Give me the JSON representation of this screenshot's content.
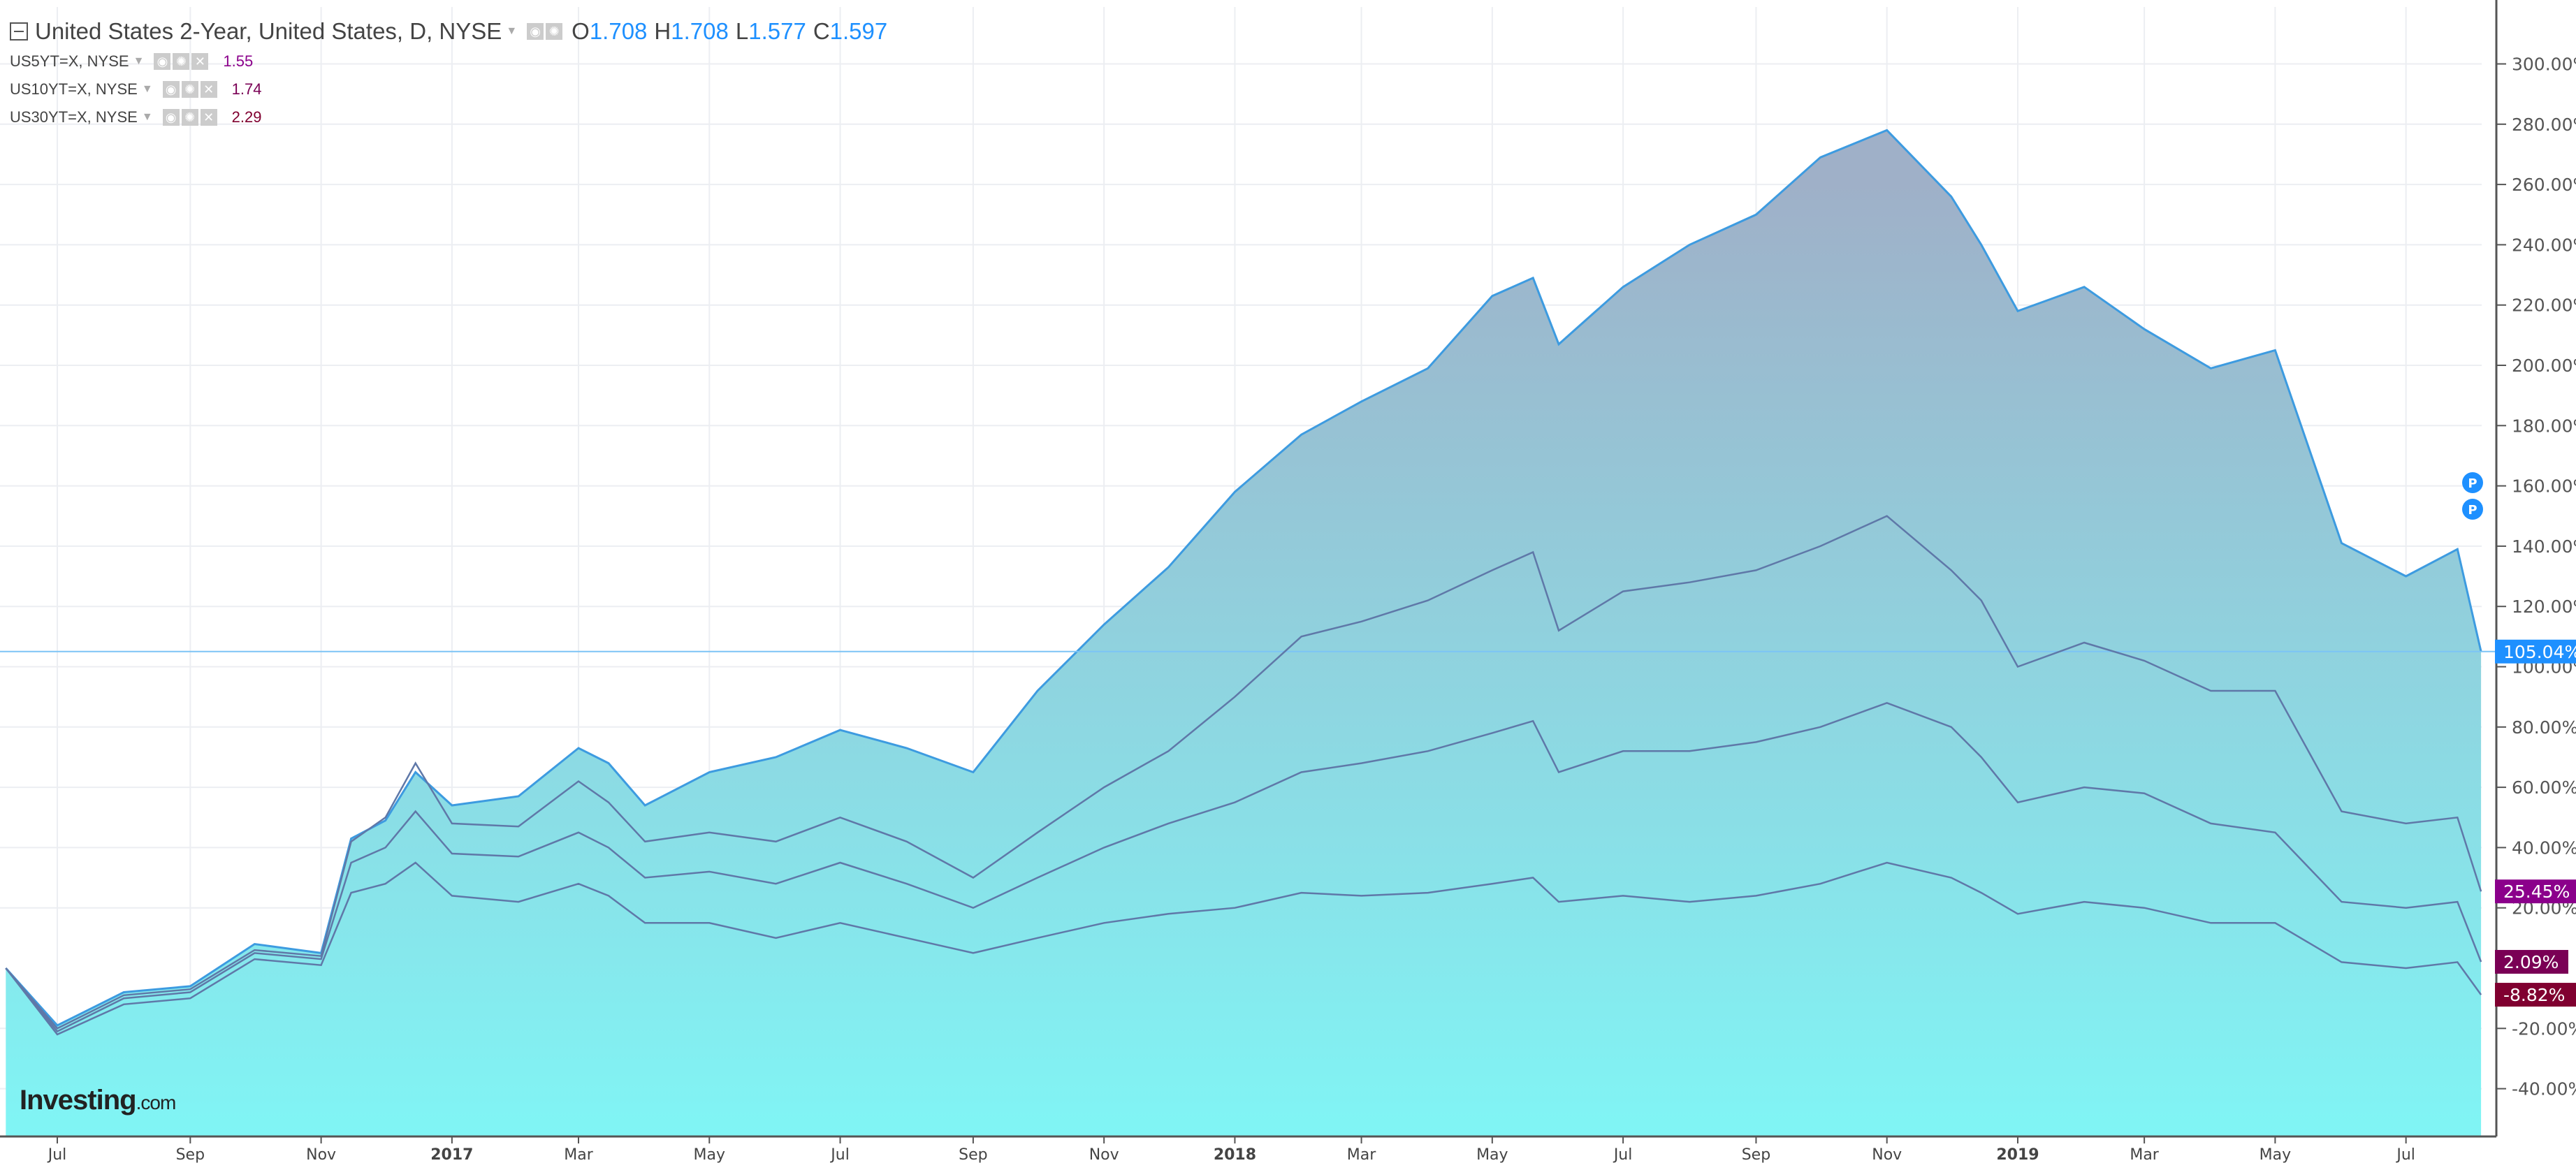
{
  "legend": {
    "main": {
      "title": "United States 2-Year, United States, D, NYSE",
      "o_label": "O",
      "o": "1.708",
      "h_label": "H",
      "h": "1.708",
      "l_label": "L",
      "l": "1.577",
      "c_label": "C",
      "c": "1.597"
    },
    "subs": [
      {
        "name": "US5YT=X, NYSE",
        "value": "1.55",
        "color": "#8b008b"
      },
      {
        "name": "US10YT=X, NYSE",
        "value": "1.74",
        "color": "#7a0055"
      },
      {
        "name": "US30YT=X, NYSE",
        "value": "2.29",
        "color": "#800030"
      }
    ],
    "icons": [
      "eye-icon",
      "gear-icon",
      "close-icon"
    ]
  },
  "logo": {
    "text": "Investing",
    "suffix": ".com"
  },
  "chart_data": {
    "type": "area",
    "y_scale": "percent change",
    "ylim": [
      -50,
      315
    ],
    "y_ticks": [
      "300.00%",
      "280.00%",
      "260.00%",
      "240.00%",
      "220.00%",
      "200.00%",
      "180.00%",
      "160.00%",
      "140.00%",
      "120.00%",
      "100.00%",
      "80.00%",
      "60.00%",
      "40.00%",
      "20.00%",
      "-20.00%",
      "-40.00%"
    ],
    "y_tick_values": [
      300,
      280,
      260,
      240,
      220,
      200,
      180,
      160,
      140,
      120,
      100,
      80,
      60,
      40,
      20,
      -20,
      -40
    ],
    "x_ticks": [
      {
        "label": "Jul",
        "date": "2016-07-01"
      },
      {
        "label": "Sep",
        "date": "2016-09-01"
      },
      {
        "label": "Nov",
        "date": "2016-11-01"
      },
      {
        "label": "2017",
        "date": "2017-01-01",
        "bold": true
      },
      {
        "label": "Mar",
        "date": "2017-03-01"
      },
      {
        "label": "May",
        "date": "2017-05-01"
      },
      {
        "label": "Jul",
        "date": "2017-07-01"
      },
      {
        "label": "Sep",
        "date": "2017-09-01"
      },
      {
        "label": "Nov",
        "date": "2017-11-01"
      },
      {
        "label": "2018",
        "date": "2018-01-01",
        "bold": true
      },
      {
        "label": "Mar",
        "date": "2018-03-01"
      },
      {
        "label": "May",
        "date": "2018-05-01"
      },
      {
        "label": "Jul",
        "date": "2018-07-01"
      },
      {
        "label": "Sep",
        "date": "2018-09-01"
      },
      {
        "label": "Nov",
        "date": "2018-11-01"
      },
      {
        "label": "2019",
        "date": "2019-01-01",
        "bold": true
      },
      {
        "label": "Mar",
        "date": "2019-03-01"
      },
      {
        "label": "May",
        "date": "2019-05-01"
      },
      {
        "label": "Jul",
        "date": "2019-07-01"
      }
    ],
    "grid": true,
    "x": [
      "2016-06-07",
      "2016-07-01",
      "2016-08-01",
      "2016-09-01",
      "2016-10-01",
      "2016-11-01",
      "2016-11-15",
      "2016-12-01",
      "2016-12-15",
      "2017-01-01",
      "2017-02-01",
      "2017-03-01",
      "2017-03-15",
      "2017-04-01",
      "2017-05-01",
      "2017-06-01",
      "2017-07-01",
      "2017-08-01",
      "2017-09-01",
      "2017-10-01",
      "2017-11-01",
      "2017-12-01",
      "2018-01-01",
      "2018-02-01",
      "2018-03-01",
      "2018-04-01",
      "2018-05-01",
      "2018-05-20",
      "2018-06-01",
      "2018-07-01",
      "2018-08-01",
      "2018-09-01",
      "2018-10-01",
      "2018-11-01",
      "2018-12-01",
      "2018-12-15",
      "2019-01-01",
      "2019-02-01",
      "2019-03-01",
      "2019-04-01",
      "2019-05-01",
      "2019-06-01",
      "2019-07-01",
      "2019-07-25",
      "2019-08-05"
    ],
    "series": [
      {
        "name": "United States 2-Year",
        "kind": "area",
        "color": "#3d9be0",
        "last_label": "105.04%",
        "label_color": "#1e90ff",
        "values": [
          0,
          -19,
          -8,
          -6,
          8,
          5,
          43,
          49,
          65,
          54,
          57,
          73,
          68,
          54,
          65,
          70,
          79,
          73,
          65,
          92,
          114,
          133,
          158,
          177,
          188,
          199,
          223,
          229,
          207,
          226,
          240,
          250,
          269,
          278,
          256,
          240,
          218,
          226,
          212,
          199,
          205,
          141,
          130,
          139,
          105.04
        ]
      },
      {
        "name": "US5YT=X, NYSE",
        "kind": "line",
        "color": "#5f78a8",
        "last_label": "25.45%",
        "label_color": "#8b008b",
        "values": [
          0,
          -20,
          -9,
          -7,
          6,
          4,
          42,
          50,
          68,
          48,
          47,
          62,
          55,
          42,
          45,
          42,
          50,
          42,
          30,
          45,
          60,
          72,
          90,
          110,
          115,
          122,
          132,
          138,
          112,
          125,
          128,
          132,
          140,
          150,
          132,
          122,
          100,
          108,
          102,
          92,
          92,
          52,
          48,
          50,
          25.45
        ]
      },
      {
        "name": "US10YT=X, NYSE",
        "kind": "line",
        "color": "#5f78a8",
        "last_label": "2.09%",
        "label_color": "#7a0055",
        "values": [
          0,
          -21,
          -10,
          -8,
          5,
          3,
          35,
          40,
          52,
          38,
          37,
          45,
          40,
          30,
          32,
          28,
          35,
          28,
          20,
          30,
          40,
          48,
          55,
          65,
          68,
          72,
          78,
          82,
          65,
          72,
          72,
          75,
          80,
          88,
          80,
          70,
          55,
          60,
          58,
          48,
          45,
          22,
          20,
          22,
          2.09
        ]
      },
      {
        "name": "US30YT=X, NYSE",
        "kind": "line",
        "color": "#5f78a8",
        "last_label": "-8.82%",
        "label_color": "#800030",
        "values": [
          0,
          -22,
          -12,
          -10,
          3,
          1,
          25,
          28,
          35,
          24,
          22,
          28,
          24,
          15,
          15,
          10,
          15,
          10,
          5,
          10,
          15,
          18,
          20,
          25,
          24,
          25,
          28,
          30,
          22,
          24,
          22,
          24,
          28,
          35,
          30,
          25,
          18,
          22,
          20,
          15,
          15,
          2,
          0,
          2,
          -8.82
        ]
      }
    ],
    "markers": [
      {
        "label": "P",
        "color": "#1e90ff"
      },
      {
        "label": "P",
        "color": "#1e90ff"
      }
    ],
    "area_gradient": [
      "#9fb0c8",
      "#80f5f5"
    ]
  }
}
